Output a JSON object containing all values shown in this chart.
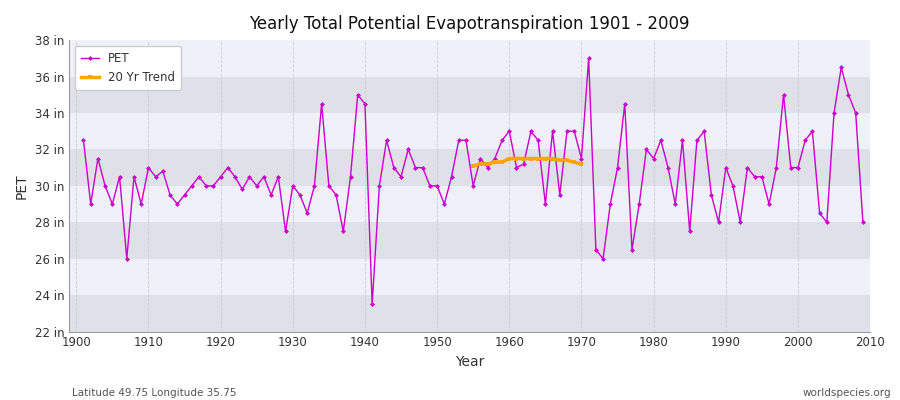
{
  "title": "Yearly Total Potential Evapotranspiration 1901 - 2009",
  "xlabel": "Year",
  "ylabel": "PET",
  "pet_color": "#CC00CC",
  "trend_color": "#FFA500",
  "background_color": "#FFFFFF",
  "plot_bg_color": "#FFFFFF",
  "grid_color_dark": "#E0E0E8",
  "grid_color_light": "#F0F0F8",
  "ylim": [
    22,
    38
  ],
  "xlim": [
    1899,
    2010
  ],
  "ytick_labels": [
    "22 in",
    "24 in",
    "26 in",
    "28 in",
    "30 in",
    "32 in",
    "34 in",
    "36 in",
    "38 in"
  ],
  "ytick_values": [
    22,
    24,
    26,
    28,
    30,
    32,
    34,
    36,
    38
  ],
  "legend_labels": [
    "PET",
    "20 Yr Trend"
  ],
  "footnote_left": "Latitude 49.75 Longitude 35.75",
  "footnote_right": "worldspecies.org",
  "years": [
    1901,
    1902,
    1903,
    1904,
    1905,
    1906,
    1907,
    1908,
    1909,
    1910,
    1911,
    1912,
    1913,
    1914,
    1915,
    1916,
    1917,
    1918,
    1919,
    1920,
    1921,
    1922,
    1923,
    1924,
    1925,
    1926,
    1927,
    1928,
    1929,
    1930,
    1931,
    1932,
    1933,
    1934,
    1935,
    1936,
    1937,
    1938,
    1939,
    1940,
    1941,
    1942,
    1943,
    1944,
    1945,
    1946,
    1947,
    1948,
    1949,
    1950,
    1951,
    1952,
    1953,
    1954,
    1955,
    1956,
    1957,
    1958,
    1959,
    1960,
    1961,
    1962,
    1963,
    1964,
    1965,
    1966,
    1967,
    1968,
    1969,
    1970,
    1971,
    1972,
    1973,
    1974,
    1975,
    1976,
    1977,
    1978,
    1979,
    1980,
    1981,
    1982,
    1983,
    1984,
    1985,
    1986,
    1987,
    1988,
    1989,
    1990,
    1991,
    1992,
    1993,
    1994,
    1995,
    1996,
    1997,
    1998,
    1999,
    2000,
    2001,
    2002,
    2003,
    2004,
    2005,
    2006,
    2007,
    2008,
    2009
  ],
  "pet_values": [
    32.5,
    29.0,
    31.5,
    30.0,
    29.0,
    30.5,
    26.0,
    30.5,
    29.0,
    31.0,
    30.5,
    30.8,
    29.5,
    29.0,
    29.5,
    30.0,
    30.5,
    30.0,
    30.0,
    30.5,
    31.0,
    30.5,
    29.8,
    30.5,
    30.0,
    30.5,
    29.5,
    30.5,
    27.5,
    30.0,
    29.5,
    28.5,
    30.0,
    34.5,
    30.0,
    29.5,
    27.5,
    30.5,
    35.0,
    34.5,
    23.5,
    30.0,
    32.5,
    31.0,
    30.5,
    32.0,
    31.0,
    31.0,
    30.0,
    30.0,
    29.0,
    30.5,
    32.5,
    32.5,
    30.0,
    31.5,
    31.0,
    31.5,
    32.5,
    33.0,
    31.0,
    31.2,
    33.0,
    32.5,
    29.0,
    33.0,
    29.5,
    33.0,
    33.0,
    31.5,
    37.0,
    26.5,
    26.0,
    29.0,
    31.0,
    34.5,
    26.5,
    29.0,
    32.0,
    31.5,
    32.5,
    31.0,
    29.0,
    32.5,
    27.5,
    32.5,
    33.0,
    29.5,
    28.0,
    31.0,
    30.0,
    28.0,
    31.0,
    30.5,
    30.5,
    29.0,
    31.0,
    35.0,
    31.0,
    31.0,
    32.5,
    33.0,
    28.5,
    28.0,
    34.0,
    36.5,
    35.0,
    34.0,
    28.0
  ],
  "trend_years": [
    1955,
    1956,
    1957,
    1958,
    1959,
    1960,
    1961,
    1962,
    1963,
    1964,
    1965,
    1966,
    1967,
    1968,
    1969,
    1970
  ],
  "trend_values": [
    31.1,
    31.2,
    31.2,
    31.3,
    31.3,
    31.5,
    31.5,
    31.5,
    31.5,
    31.5,
    31.5,
    31.5,
    31.4,
    31.4,
    31.3,
    31.2
  ]
}
